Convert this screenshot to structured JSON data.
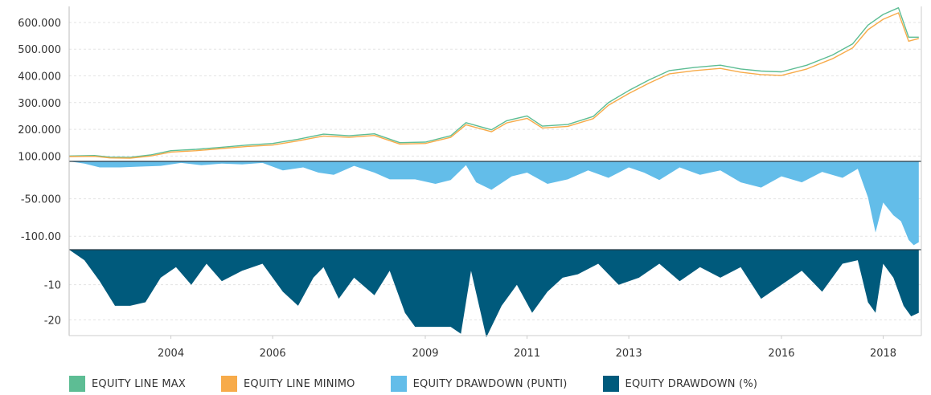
{
  "chart_data": {
    "type": "area",
    "x_ticks": [
      "2004",
      "2006",
      "2009",
      "2011",
      "2013",
      "2016",
      "2018"
    ],
    "legend_position": "bottom-left",
    "grid": true,
    "colors": {
      "equity_max": "#5dbd94",
      "equity_min": "#f7ab4a",
      "drawdown_points": "#63bde9",
      "drawdown_pct": "#005a7c"
    },
    "panels": [
      {
        "name": "equity",
        "y_ticks": [
          "600.000",
          "500.000",
          "400.000",
          "300.000",
          "200.000",
          "100.000"
        ],
        "y_tick_values": [
          600000,
          500000,
          400000,
          300000,
          200000,
          100000
        ],
        "ylim": [
          80000,
          660000
        ]
      },
      {
        "name": "drawdown_points",
        "y_ticks": [
          "-50.000",
          "-100.00"
        ],
        "y_tick_values": [
          -50000,
          -100000
        ],
        "ylim": [
          -118000,
          0
        ]
      },
      {
        "name": "drawdown_pct",
        "y_ticks": [
          "-10",
          "-20"
        ],
        "y_tick_values": [
          -10,
          -20
        ],
        "ylim": [
          -24.5,
          0
        ]
      }
    ],
    "xlim": [
      2002.0,
      2018.75
    ],
    "series": [
      {
        "name": "EQUITY LINE MAX",
        "panel": "equity",
        "x": [
          2002.0,
          2002.5,
          2002.8,
          2003.2,
          2003.6,
          2004.0,
          2004.5,
          2005.0,
          2005.5,
          2006.0,
          2006.5,
          2007.0,
          2007.5,
          2008.0,
          2008.5,
          2009.0,
          2009.5,
          2009.8,
          2010.3,
          2010.6,
          2011.0,
          2011.3,
          2011.8,
          2012.3,
          2012.6,
          2013.0,
          2013.4,
          2013.8,
          2014.3,
          2014.8,
          2015.2,
          2015.6,
          2016.0,
          2016.5,
          2017.0,
          2017.4,
          2017.7,
          2018.0,
          2018.3,
          2018.5,
          2018.7
        ],
        "values": [
          100000,
          102000,
          96000,
          95000,
          104000,
          120000,
          125000,
          133000,
          141000,
          147000,
          163000,
          182000,
          176000,
          183000,
          150000,
          152000,
          176000,
          225000,
          198000,
          232000,
          250000,
          212000,
          218000,
          248000,
          300000,
          345000,
          385000,
          420000,
          432000,
          440000,
          426000,
          418000,
          415000,
          440000,
          478000,
          520000,
          590000,
          630000,
          655000,
          545000,
          545000
        ]
      },
      {
        "name": "EQUITY LINE MINIMO",
        "panel": "equity",
        "x": [
          2002.0,
          2002.5,
          2002.8,
          2003.2,
          2003.6,
          2004.0,
          2004.5,
          2005.0,
          2005.5,
          2006.0,
          2006.5,
          2007.0,
          2007.5,
          2008.0,
          2008.5,
          2009.0,
          2009.5,
          2009.8,
          2010.3,
          2010.6,
          2011.0,
          2011.3,
          2011.8,
          2012.3,
          2012.6,
          2013.0,
          2013.4,
          2013.8,
          2014.3,
          2014.8,
          2015.2,
          2015.6,
          2016.0,
          2016.5,
          2017.0,
          2017.4,
          2017.7,
          2018.0,
          2018.3,
          2018.5,
          2018.7
        ],
        "values": [
          98000,
          99000,
          93000,
          92000,
          100000,
          115000,
          120000,
          128000,
          136000,
          141000,
          157000,
          175000,
          170000,
          177000,
          145000,
          147000,
          170000,
          217000,
          191000,
          224000,
          241000,
          205000,
          211000,
          240000,
          290000,
          334000,
          373000,
          408000,
          420000,
          428000,
          414000,
          405000,
          402000,
          426000,
          464000,
          505000,
          573000,
          612000,
          636000,
          530000,
          540000
        ]
      },
      {
        "name": "EQUITY DRAWDOWN (PUNTI)",
        "panel": "drawdown_points",
        "x": [
          2002.0,
          2002.3,
          2002.6,
          2003.0,
          2003.4,
          2003.8,
          2004.2,
          2004.6,
          2005.0,
          2005.4,
          2005.8,
          2006.2,
          2006.6,
          2006.9,
          2007.2,
          2007.6,
          2008.0,
          2008.3,
          2008.8,
          2009.2,
          2009.5,
          2009.8,
          2010.0,
          2010.3,
          2010.7,
          2011.0,
          2011.4,
          2011.8,
          2012.2,
          2012.6,
          2013.0,
          2013.3,
          2013.6,
          2014.0,
          2014.4,
          2014.8,
          2015.2,
          2015.6,
          2016.0,
          2016.4,
          2016.8,
          2017.2,
          2017.5,
          2017.7,
          2017.85,
          2018.0,
          2018.2,
          2018.35,
          2018.5,
          2018.6,
          2018.7
        ],
        "values": [
          0,
          -3000,
          -8000,
          -8000,
          -7000,
          -6000,
          -2000,
          -5000,
          -3000,
          -4000,
          -2000,
          -12000,
          -8000,
          -15000,
          -18000,
          -6000,
          -15000,
          -24000,
          -24000,
          -30000,
          -25000,
          -5000,
          -28000,
          -38000,
          -20000,
          -15000,
          -30000,
          -24000,
          -12000,
          -22000,
          -8000,
          -15000,
          -25000,
          -8000,
          -18000,
          -12000,
          -28000,
          -35000,
          -20000,
          -28000,
          -14000,
          -22000,
          -10000,
          -48000,
          -95000,
          -55000,
          -72000,
          -80000,
          -105000,
          -112000,
          -108000
        ]
      },
      {
        "name": "EQUITY DRAWDOWN (%)",
        "panel": "drawdown_pct",
        "x": [
          2002.0,
          2002.3,
          2002.6,
          2002.9,
          2003.2,
          2003.5,
          2003.8,
          2004.1,
          2004.4,
          2004.7,
          2005.0,
          2005.4,
          2005.8,
          2006.2,
          2006.5,
          2006.8,
          2007.0,
          2007.3,
          2007.6,
          2008.0,
          2008.3,
          2008.6,
          2008.8,
          2009.2,
          2009.5,
          2009.7,
          2009.9,
          2010.2,
          2010.5,
          2010.8,
          2011.1,
          2011.4,
          2011.7,
          2012.0,
          2012.4,
          2012.8,
          2013.2,
          2013.6,
          2014.0,
          2014.4,
          2014.8,
          2015.2,
          2015.6,
          2016.0,
          2016.4,
          2016.8,
          2017.2,
          2017.5,
          2017.7,
          2017.85,
          2018.0,
          2018.2,
          2018.4,
          2018.55,
          2018.7
        ],
        "values": [
          0,
          -3,
          -9,
          -16,
          -16,
          -15,
          -8,
          -5,
          -10,
          -4,
          -9,
          -6,
          -4,
          -12,
          -16,
          -8,
          -5,
          -14,
          -8,
          -13,
          -6,
          -18,
          -22,
          -22,
          -22,
          -24,
          -6,
          -25,
          -16,
          -10,
          -18,
          -12,
          -8,
          -7,
          -4,
          -10,
          -8,
          -4,
          -9,
          -5,
          -8,
          -5,
          -14,
          -10,
          -6,
          -12,
          -4,
          -3,
          -15,
          -18,
          -4,
          -8,
          -16,
          -19,
          -18
        ]
      }
    ]
  },
  "legend": [
    {
      "label": "EQUITY LINE MAX",
      "color": "#5dbd94"
    },
    {
      "label": "EQUITY LINE MINIMO",
      "color": "#f7ab4a"
    },
    {
      "label": "EQUITY DRAWDOWN (PUNTI)",
      "color": "#63bde9"
    },
    {
      "label": "EQUITY DRAWDOWN (%)",
      "color": "#005a7c"
    }
  ]
}
